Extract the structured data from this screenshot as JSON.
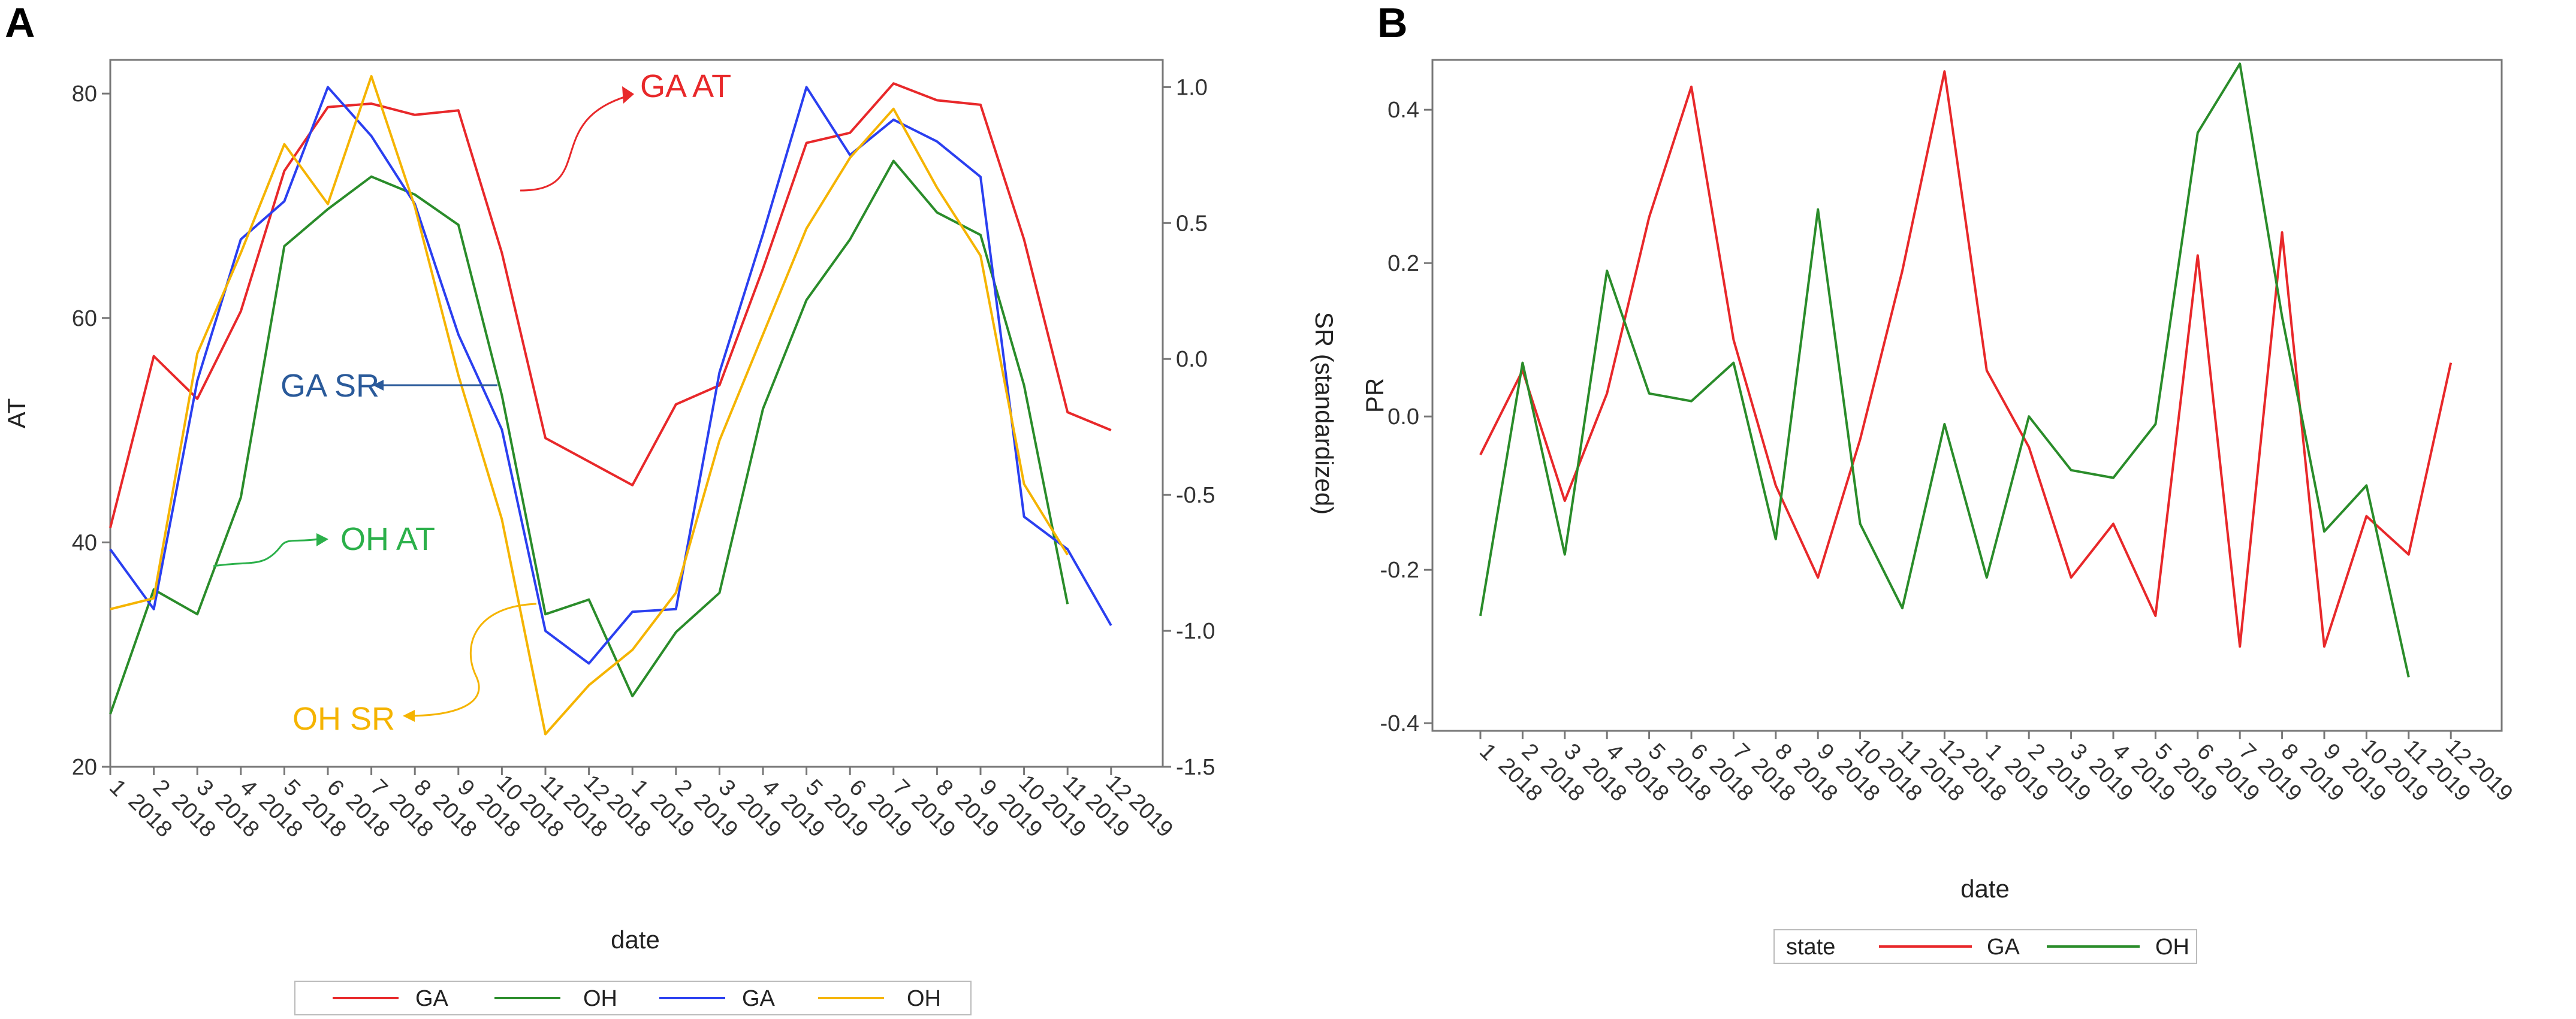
{
  "panels": {
    "a": {
      "label": "A"
    },
    "b": {
      "label": "B"
    }
  },
  "colors": {
    "ga_at": "#e8282a",
    "oh_at": "#2a8c2a",
    "ga_sr": "#2a3ff0",
    "oh_sr": "#f5b400",
    "annot_ga_at": "#e8282a",
    "annot_ga_sr": "#2a5a9a",
    "annot_oh_at": "#2bb04a",
    "annot_oh_sr": "#f5b400"
  },
  "annotations": {
    "ga_at": "GA AT",
    "ga_sr": "GA SR",
    "oh_at": "OH AT",
    "oh_sr": "OH SR"
  },
  "chart_data": [
    {
      "id": "A",
      "type": "line",
      "xlabel": "date",
      "ylabel": "AT",
      "ylabel_right": "SR (standardized)",
      "ylim": [
        20,
        83
      ],
      "ylim_right": [
        -1.5,
        1.1
      ],
      "yticks": [
        20,
        40,
        60,
        80
      ],
      "yticks_right": [
        -1.5,
        -1.0,
        -0.5,
        0.0,
        0.5,
        1.0
      ],
      "categories": [
        [
          "1",
          "2018"
        ],
        [
          "2",
          "2018"
        ],
        [
          "3",
          "2018"
        ],
        [
          "4",
          "2018"
        ],
        [
          "5",
          "2018"
        ],
        [
          "6",
          "2018"
        ],
        [
          "7",
          "2018"
        ],
        [
          "8",
          "2018"
        ],
        [
          "9",
          "2018"
        ],
        [
          "10",
          "2018"
        ],
        [
          "11",
          "2018"
        ],
        [
          "12",
          "2018"
        ],
        [
          "1",
          "2019"
        ],
        [
          "2",
          "2019"
        ],
        [
          "3",
          "2019"
        ],
        [
          "4",
          "2019"
        ],
        [
          "5",
          "2019"
        ],
        [
          "6",
          "2019"
        ],
        [
          "7",
          "2019"
        ],
        [
          "8",
          "2019"
        ],
        [
          "9",
          "2019"
        ],
        [
          "10",
          "2019"
        ],
        [
          "11",
          "2019"
        ],
        [
          "12",
          "2019"
        ]
      ],
      "series": [
        {
          "name": "GA",
          "axis": "left",
          "color_key": "ga_at",
          "values": [
            41.3,
            56.6,
            52.8,
            60.6,
            73.1,
            78.8,
            79.1,
            78.1,
            78.5,
            65.8,
            49.3,
            47.2,
            45.1,
            52.3,
            54.0,
            64.4,
            75.6,
            76.5,
            80.9,
            79.4,
            79.0,
            67.0,
            51.6,
            50.0
          ]
        },
        {
          "name": "OH",
          "axis": "left",
          "color_key": "oh_at",
          "values": [
            24.7,
            35.8,
            33.6,
            44.0,
            66.4,
            69.7,
            72.6,
            71.0,
            68.3,
            53.1,
            33.6,
            34.9,
            26.3,
            32.0,
            35.5,
            51.9,
            61.6,
            67.0,
            74.0,
            69.4,
            67.4,
            54.0,
            34.5,
            null
          ]
        },
        {
          "name": "GA",
          "axis": "right",
          "color_key": "ga_sr",
          "values": [
            -0.7,
            -0.92,
            -0.08,
            0.44,
            0.58,
            1.0,
            0.82,
            0.57,
            0.09,
            -0.26,
            -1.0,
            -1.12,
            -0.93,
            -0.92,
            -0.05,
            0.46,
            1.0,
            0.75,
            0.88,
            0.8,
            0.67,
            -0.58,
            -0.7,
            -0.98
          ]
        },
        {
          "name": "OH",
          "axis": "right",
          "color_key": "oh_sr",
          "values": [
            -0.92,
            -0.88,
            0.02,
            0.39,
            0.79,
            0.57,
            1.04,
            0.56,
            -0.06,
            -0.59,
            -1.38,
            -1.2,
            -1.07,
            -0.86,
            -0.3,
            0.09,
            0.48,
            0.74,
            0.92,
            0.63,
            0.38,
            -0.46,
            -0.72,
            null
          ]
        }
      ],
      "legend": [
        "GA",
        "OH",
        "GA",
        "OH"
      ]
    },
    {
      "id": "B",
      "type": "line",
      "xlabel": "date",
      "ylabel": "PR",
      "ylim": [
        -0.4,
        0.46
      ],
      "yticks": [
        -0.4,
        -0.2,
        0.0,
        0.2,
        0.4
      ],
      "categories": [
        [
          "1",
          "2018"
        ],
        [
          "2",
          "2018"
        ],
        [
          "3",
          "2018"
        ],
        [
          "4",
          "2018"
        ],
        [
          "5",
          "2018"
        ],
        [
          "6",
          "2018"
        ],
        [
          "7",
          "2018"
        ],
        [
          "8",
          "2018"
        ],
        [
          "9",
          "2018"
        ],
        [
          "10",
          "2018"
        ],
        [
          "11",
          "2018"
        ],
        [
          "12",
          "2018"
        ],
        [
          "1",
          "2019"
        ],
        [
          "2",
          "2019"
        ],
        [
          "3",
          "2019"
        ],
        [
          "4",
          "2019"
        ],
        [
          "5",
          "2019"
        ],
        [
          "6",
          "2019"
        ],
        [
          "7",
          "2019"
        ],
        [
          "8",
          "2019"
        ],
        [
          "9",
          "2019"
        ],
        [
          "10",
          "2019"
        ],
        [
          "11",
          "2019"
        ],
        [
          "12",
          "2019"
        ]
      ],
      "series": [
        {
          "name": "GA",
          "color_key": "ga_at",
          "values": [
            -0.05,
            0.06,
            -0.11,
            0.03,
            0.26,
            0.43,
            0.1,
            -0.09,
            -0.21,
            -0.03,
            0.19,
            0.45,
            0.06,
            -0.04,
            -0.21,
            -0.14,
            -0.26,
            0.21,
            -0.3,
            0.24,
            -0.3,
            -0.13,
            -0.18,
            0.07
          ]
        },
        {
          "name": "OH",
          "color_key": "oh_at",
          "values": [
            -0.26,
            0.07,
            -0.18,
            0.19,
            0.03,
            0.02,
            0.07,
            -0.16,
            0.27,
            -0.14,
            -0.25,
            -0.01,
            -0.21,
            0.0,
            -0.07,
            -0.08,
            -0.01,
            0.37,
            0.46,
            0.13,
            -0.15,
            -0.09,
            -0.34,
            null
          ]
        }
      ],
      "legend_title": "state",
      "legend": [
        "GA",
        "OH"
      ]
    }
  ]
}
